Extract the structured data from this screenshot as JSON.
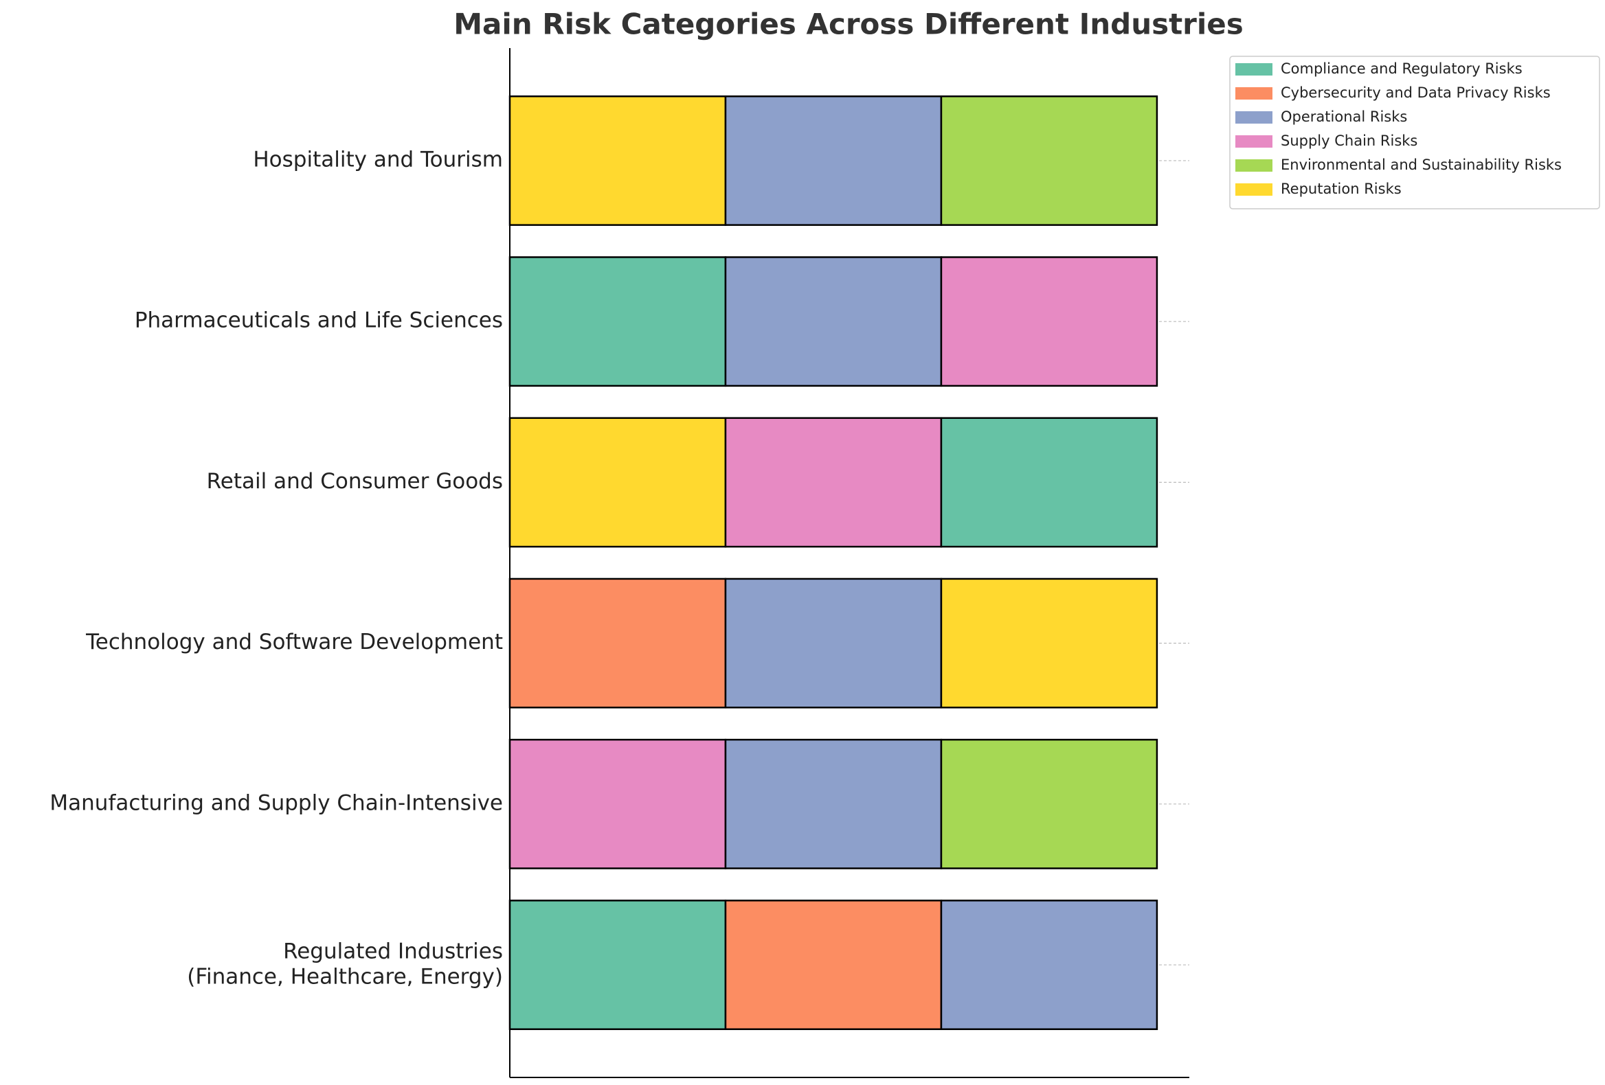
{
  "chart_data": {
    "type": "stacked-bar-horizontal",
    "title": "Main Risk Categories Across Different Industries",
    "categories": [
      "Regulated Industries\n(Finance, Healthcare, Energy)",
      "Manufacturing and Supply Chain-Intensive",
      "Technology and Software Development",
      "Retail and Consumer Goods",
      "Pharmaceuticals and Life Sciences",
      "Hospitality and Tourism"
    ],
    "series": [
      {
        "name": "Compliance and Regulatory Risks",
        "color": "#66c2a5"
      },
      {
        "name": "Cybersecurity and Data Privacy Risks",
        "color": "#fc8d62"
      },
      {
        "name": "Operational Risks",
        "color": "#8da0cb"
      },
      {
        "name": "Supply Chain Risks",
        "color": "#e78ac3"
      },
      {
        "name": "Environmental and Sustainability Risks",
        "color": "#a6d854"
      },
      {
        "name": "Reputation Risks",
        "color": "#ffd92f"
      }
    ],
    "bars": [
      [
        {
          "risk": "Compliance and Regulatory Risks",
          "value": 1
        },
        {
          "risk": "Cybersecurity and Data Privacy Risks",
          "value": 1
        },
        {
          "risk": "Operational Risks",
          "value": 1
        }
      ],
      [
        {
          "risk": "Supply Chain Risks",
          "value": 1
        },
        {
          "risk": "Operational Risks",
          "value": 1
        },
        {
          "risk": "Environmental and Sustainability Risks",
          "value": 1
        }
      ],
      [
        {
          "risk": "Cybersecurity and Data Privacy Risks",
          "value": 1
        },
        {
          "risk": "Operational Risks",
          "value": 1
        },
        {
          "risk": "Reputation Risks",
          "value": 1
        }
      ],
      [
        {
          "risk": "Reputation Risks",
          "value": 1
        },
        {
          "risk": "Supply Chain Risks",
          "value": 1
        },
        {
          "risk": "Compliance and Regulatory Risks",
          "value": 1
        }
      ],
      [
        {
          "risk": "Compliance and Regulatory Risks",
          "value": 1
        },
        {
          "risk": "Operational Risks",
          "value": 1
        },
        {
          "risk": "Supply Chain Risks",
          "value": 1
        }
      ],
      [
        {
          "risk": "Reputation Risks",
          "value": 1
        },
        {
          "risk": "Operational Risks",
          "value": 1
        },
        {
          "risk": "Environmental and Sustainability Risks",
          "value": 1
        }
      ]
    ],
    "xlim": [
      0,
      3.15
    ],
    "ylim": [
      -0.7,
      5.7
    ],
    "grid": true,
    "legend": "outside-upper-right"
  }
}
